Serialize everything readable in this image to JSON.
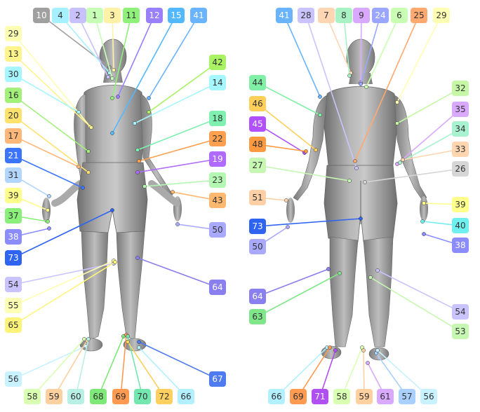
{
  "figures": {
    "front": {
      "view": "front",
      "labels": [
        {
          "id": "10",
          "color": "#a0a0a0",
          "anchor": "head-top"
        },
        {
          "id": "4",
          "color": "#a6f0ff",
          "anchor": "nose"
        },
        {
          "id": "2",
          "color": "#c7c2ff",
          "anchor": "nose-left"
        },
        {
          "id": "1",
          "color": "#c8ffb7",
          "anchor": "chin"
        },
        {
          "id": "3",
          "color": "#fff2a6",
          "anchor": "nose-bridge"
        },
        {
          "id": "11",
          "color": "#8ff07a",
          "anchor": "collar"
        },
        {
          "id": "12",
          "color": "#9880ff",
          "anchor": "collar-left"
        },
        {
          "id": "15",
          "color": "#52b8ff",
          "anchor": "chest"
        },
        {
          "id": "41",
          "color": "#6ab3ff",
          "anchor": "shoulder"
        },
        {
          "id": "29",
          "color": "#ffffb3",
          "anchor": "chest-right"
        },
        {
          "id": "13",
          "color": "#fff48c",
          "anchor": "chest-mid"
        },
        {
          "id": "30",
          "color": "#a6f6ff",
          "anchor": "upper-arm-right"
        },
        {
          "id": "16",
          "color": "#a3f07a",
          "anchor": "elbow-right"
        },
        {
          "id": "20",
          "color": "#ffe26e",
          "anchor": "waist-right"
        },
        {
          "id": "17",
          "color": "#ffb77a",
          "anchor": "waist-front"
        },
        {
          "id": "21",
          "color": "#3a74ff",
          "anchor": "forearm-right"
        },
        {
          "id": "31",
          "color": "#b3d6ff",
          "anchor": "wrist-right"
        },
        {
          "id": "39",
          "color": "#ffff8c",
          "anchor": "hand-right"
        },
        {
          "id": "37",
          "color": "#8af07a",
          "anchor": "palm-right"
        },
        {
          "id": "38",
          "color": "#8a8cff",
          "anchor": "finger-right"
        },
        {
          "id": "73",
          "color": "#2f64f2",
          "anchor": "crotch"
        },
        {
          "id": "54",
          "color": "#c9c4ff",
          "anchor": "knee-right"
        },
        {
          "id": "55",
          "color": "#ffffb3",
          "anchor": "knee-inner"
        },
        {
          "id": "65",
          "color": "#fff47a",
          "anchor": "knee-front"
        },
        {
          "id": "42",
          "color": "#a9f263",
          "anchor": "chest-left"
        },
        {
          "id": "14",
          "color": "#a6f6ff",
          "anchor": "sternum"
        },
        {
          "id": "18",
          "color": "#7ff0b0",
          "anchor": "abdomen"
        },
        {
          "id": "22",
          "color": "#ffa050",
          "anchor": "hip-left"
        },
        {
          "id": "19",
          "color": "#b06aff",
          "anchor": "waist-left"
        },
        {
          "id": "23",
          "color": "#b3f7b3",
          "anchor": "forearm-left"
        },
        {
          "id": "43",
          "color": "#ffb870",
          "anchor": "wrist-left"
        },
        {
          "id": "50",
          "color": "#a9a9ff",
          "anchor": "hand-left"
        },
        {
          "id": "64",
          "color": "#8a7fee",
          "anchor": "knee-left"
        },
        {
          "id": "56",
          "color": "#c8f2ff",
          "anchor": "foot-right-outer"
        },
        {
          "id": "58",
          "color": "#d9ffb3",
          "anchor": "toe-a"
        },
        {
          "id": "59",
          "color": "#ffd0a0",
          "anchor": "toe-b"
        },
        {
          "id": "60",
          "color": "#b9f0e6",
          "anchor": "toe-c"
        },
        {
          "id": "68",
          "color": "#7ee878",
          "anchor": "toe-d"
        },
        {
          "id": "69",
          "color": "#ff9a50",
          "anchor": "toe-e"
        },
        {
          "id": "70",
          "color": "#74e6b0",
          "anchor": "toe-f"
        },
        {
          "id": "72",
          "color": "#ffd060",
          "anchor": "toe-g"
        },
        {
          "id": "66",
          "color": "#b3f0ff",
          "anchor": "toe-h"
        },
        {
          "id": "67",
          "color": "#4f7bf0",
          "anchor": "foot-left-outer"
        }
      ]
    },
    "back": {
      "view": "back",
      "labels": [
        {
          "id": "41",
          "color": "#6ab3ff",
          "anchor": "shoulder-left"
        },
        {
          "id": "28",
          "color": "#c9c4ff",
          "anchor": "spine"
        },
        {
          "id": "7",
          "color": "#ffd6b3",
          "anchor": "neck"
        },
        {
          "id": "8",
          "color": "#a9f2c4",
          "anchor": "neck-right"
        },
        {
          "id": "9",
          "color": "#d9a9ff",
          "anchor": "head-back"
        },
        {
          "id": "24",
          "color": "#9aa6ff",
          "anchor": "nape"
        },
        {
          "id": "6",
          "color": "#c8ffb3",
          "anchor": "shoulder-top"
        },
        {
          "id": "25",
          "color": "#ffa870",
          "anchor": "lower-back"
        },
        {
          "id": "29",
          "color": "#ffffb3",
          "anchor": "shoulder-right"
        },
        {
          "id": "44",
          "color": "#7ff0a6",
          "anchor": "upper-arm-left"
        },
        {
          "id": "46",
          "color": "#ffcf5a",
          "anchor": "elbow-left"
        },
        {
          "id": "45",
          "color": "#b050ff",
          "anchor": "elbow-inner"
        },
        {
          "id": "48",
          "color": "#ff9a40",
          "anchor": "forearm-left"
        },
        {
          "id": "27",
          "color": "#c6f7b3",
          "anchor": "waist-back"
        },
        {
          "id": "51",
          "color": "#ffd0a6",
          "anchor": "wrist-left"
        },
        {
          "id": "73",
          "color": "#2f64f2",
          "anchor": "buttocks"
        },
        {
          "id": "50",
          "color": "#a9a9ff",
          "anchor": "hand-left"
        },
        {
          "id": "64",
          "color": "#8a7fee",
          "anchor": "knee-left"
        },
        {
          "id": "63",
          "color": "#7fe68a",
          "anchor": "knee-left-lower"
        },
        {
          "id": "32",
          "color": "#c6f7a6",
          "anchor": "scapula"
        },
        {
          "id": "35",
          "color": "#d9a9ff",
          "anchor": "upper-arm-right"
        },
        {
          "id": "34",
          "color": "#a9f2d0",
          "anchor": "elbow-right"
        },
        {
          "id": "33",
          "color": "#ffd6b0",
          "anchor": "elbow-right-inner"
        },
        {
          "id": "26",
          "color": "#d6d6d6",
          "anchor": "belt"
        },
        {
          "id": "39",
          "color": "#ffff8c",
          "anchor": "wrist-right"
        },
        {
          "id": "40",
          "color": "#6ff0f0",
          "anchor": "hand-right"
        },
        {
          "id": "38",
          "color": "#8a8cff",
          "anchor": "finger-right"
        },
        {
          "id": "54",
          "color": "#c9c4ff",
          "anchor": "knee-right"
        },
        {
          "id": "53",
          "color": "#c6f7b3",
          "anchor": "calf-right"
        },
        {
          "id": "66",
          "color": "#b3f0ff",
          "anchor": "heel-a"
        },
        {
          "id": "69",
          "color": "#ff9a50",
          "anchor": "heel-b"
        },
        {
          "id": "71",
          "color": "#b050f0",
          "anchor": "heel-c"
        },
        {
          "id": "58",
          "color": "#d9ffb3",
          "anchor": "heel-d"
        },
        {
          "id": "59",
          "color": "#ffd0a0",
          "anchor": "heel-e"
        },
        {
          "id": "61",
          "color": "#d9a9ff",
          "anchor": "heel-f"
        },
        {
          "id": "57",
          "color": "#a9d0ff",
          "anchor": "heel-g"
        },
        {
          "id": "56",
          "color": "#c8f2ff",
          "anchor": "heel-h"
        }
      ]
    }
  }
}
